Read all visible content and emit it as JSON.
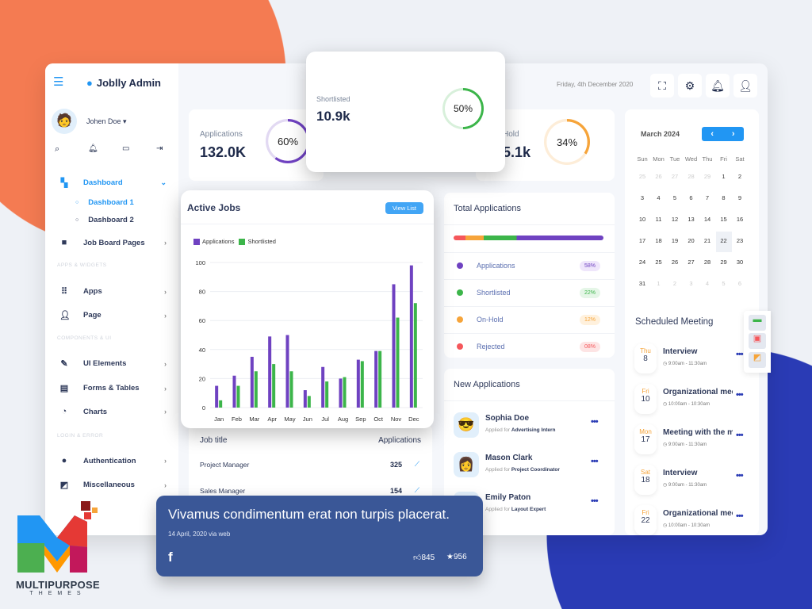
{
  "brand": {
    "app_name": "Joblly Admin",
    "user_name": "Johen Doe",
    "date": "Friday, 4th December 2020"
  },
  "sidebar": {
    "items": [
      {
        "label": "Dashboard",
        "icon": "grid-icon"
      },
      {
        "label": "Dashboard 1"
      },
      {
        "label": "Dashboard 2"
      },
      {
        "label": "Job Board Pages",
        "icon": "briefcase-icon"
      },
      {
        "label": "Apps",
        "icon": "apps-icon"
      },
      {
        "label": "Page",
        "icon": "user-icon"
      },
      {
        "label": "UI Elements",
        "icon": "edit-icon"
      },
      {
        "label": "Forms & Tables",
        "icon": "form-icon"
      },
      {
        "label": "Charts",
        "icon": "pie-icon"
      },
      {
        "label": "Authentication",
        "icon": "lock-icon"
      },
      {
        "label": "Miscellaneous",
        "icon": "misc-icon"
      }
    ],
    "sections": [
      "APPS & WIDGETS",
      "COMPONENTS & UI",
      "LOGIN & ERROR"
    ]
  },
  "stats": [
    {
      "label": "Applications",
      "value": "132.0K",
      "percent": "60%",
      "fraction": 0.6,
      "color": "#6f42c1"
    },
    {
      "label": "Shortlisted",
      "value": "10.9k",
      "percent": "50%",
      "fraction": 0.5,
      "color": "#3cb54a"
    },
    {
      "label": "Hold",
      "value": "5.1k",
      "percent": "34%",
      "fraction": 0.34,
      "color": "#f6a43a"
    }
  ],
  "active_jobs": {
    "title": "Active Jobs",
    "button": "View List"
  },
  "chart_data": {
    "type": "bar",
    "categories": [
      "Jan",
      "Feb",
      "Mar",
      "Apr",
      "May",
      "Jun",
      "Jul",
      "Aug",
      "Sep",
      "Oct",
      "Nov",
      "Dec"
    ],
    "series": [
      {
        "name": "Applications",
        "color": "#6f42c1",
        "values": [
          15,
          22,
          35,
          49,
          50,
          12,
          28,
          20,
          33,
          39,
          85,
          98
        ]
      },
      {
        "name": "Shortlisted",
        "color": "#3cb54a",
        "values": [
          5,
          15,
          25,
          30,
          25,
          8,
          18,
          21,
          32,
          39,
          62,
          72
        ]
      }
    ],
    "yticks": [
      "0",
      "20",
      "40",
      "60",
      "80",
      "100"
    ],
    "ylim": [
      0,
      100
    ],
    "grid": true,
    "legend": "top-left"
  },
  "jobs_table": {
    "headers": [
      "Job title",
      "Applications"
    ],
    "rows": [
      {
        "title": "Project Manager",
        "count": "325"
      },
      {
        "title": "Sales Manager",
        "count": "154"
      }
    ]
  },
  "total_applications": {
    "title": "Total Applications",
    "items": [
      {
        "label": "Applications",
        "pct": "58%",
        "color": "#6f42c1",
        "bg": "#efe6fb"
      },
      {
        "label": "Shortlisted",
        "pct": "22%",
        "color": "#3cb54a",
        "bg": "#e5f6e7"
      },
      {
        "label": "On-Hold",
        "pct": "12%",
        "color": "#f6a43a",
        "bg": "#fff1dd"
      },
      {
        "label": "Rejected",
        "pct": "08%",
        "color": "#f5575b",
        "bg": "#fde4e4"
      }
    ]
  },
  "new_applications": {
    "title": "New Applications",
    "prefix": "Applied for",
    "items": [
      {
        "name": "Sophia Doe",
        "role": "Advertising Intern"
      },
      {
        "name": "Mason Clark",
        "role": "Project Coordinator"
      },
      {
        "name": "Emily Paton",
        "role": "Layout Expert"
      }
    ]
  },
  "calendar": {
    "month": "March 2024",
    "weekdays": [
      "Sun",
      "Mon",
      "Tue",
      "Wed",
      "Thu",
      "Fri",
      "Sat"
    ],
    "days": [
      "25",
      "26",
      "27",
      "28",
      "29",
      "1",
      "2",
      "3",
      "4",
      "5",
      "6",
      "7",
      "8",
      "9",
      "10",
      "11",
      "12",
      "13",
      "14",
      "15",
      "16",
      "17",
      "18",
      "19",
      "20",
      "21",
      "22",
      "23",
      "24",
      "25",
      "26",
      "27",
      "28",
      "29",
      "30",
      "31",
      "1",
      "2",
      "3",
      "4",
      "5",
      "6"
    ],
    "selected": "22"
  },
  "meetings": {
    "title": "Scheduled Meeting",
    "items": [
      {
        "day": "Thu",
        "date": "8",
        "title": "Interview",
        "time": "9:00am - 11:30am"
      },
      {
        "day": "Fri",
        "date": "10",
        "title": "Organizational meeting",
        "time": "10:00am - 10:30am"
      },
      {
        "day": "Mon",
        "date": "17",
        "title": "Meeting with the manager",
        "time": "9:00am - 11:30am"
      },
      {
        "day": "Sat",
        "date": "18",
        "title": "Interview",
        "time": "9:00am - 11:30am"
      },
      {
        "day": "Fri",
        "date": "22",
        "title": "Organizational meeting",
        "time": "10:00am - 10:30am"
      }
    ]
  },
  "social": {
    "text": "Vivamus condimentum erat non turpis placerat.",
    "meta": "14 April, 2020 via web",
    "likes": "845",
    "stars": "956",
    "bg": "#3a5797"
  },
  "logo": {
    "text": "MULTIPURPOSE",
    "sub": "THEMES"
  }
}
